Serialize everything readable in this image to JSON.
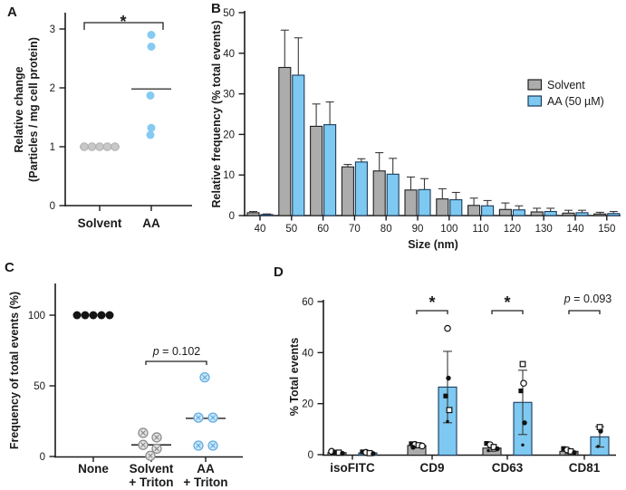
{
  "colors": {
    "axis": "#1a1a1a",
    "gray_fill": "#ACACAC",
    "gray_stroke": "#1f1f1f",
    "blue_fill": "#7EC9F1",
    "blue_stroke": "#1B3A5C",
    "errorbar": "#3a3a3a",
    "gray_dot": "#C8C8C8",
    "gray_dot_stroke": "#AFAFAF",
    "blue_dot": "#85CAF2",
    "black_dot": "#151515",
    "mean_gray": "#9F9F9F",
    "mean_dark": "#4a4a4a",
    "crossed_gray": "#8C8C8C",
    "crossed_gray_fill": "#E4E4E4",
    "crossed_blue": "#63ACDE",
    "crossed_blue_fill": "#CBE7FA",
    "marker_black": "#111111"
  },
  "chart_data": [
    {
      "id": "A",
      "type": "scatter",
      "panel_label": "A",
      "ylabel_lines": [
        "Relative change",
        "(Particles / mg cell protein)"
      ],
      "yticks": [
        0,
        1,
        2,
        3
      ],
      "ylim": [
        0,
        3.25
      ],
      "significance": "*",
      "groups": [
        {
          "label": "Solvent",
          "style": "gray-dot",
          "points": [
            1,
            1,
            1,
            1,
            1
          ],
          "jitter": [
            -17,
            -8.5,
            0,
            8.5,
            17
          ],
          "mean": 1.0
        },
        {
          "label": "AA",
          "style": "blue-dot",
          "points": [
            2.9,
            2.7,
            1.87,
            1.32,
            1.2
          ],
          "jitter": [
            0,
            0,
            -1,
            0,
            -1
          ],
          "mean": 1.98
        }
      ]
    },
    {
      "id": "B",
      "type": "bar",
      "panel_label": "B",
      "ylabel": "Relative frequency (% total events)",
      "xlabel": "Size (nm)",
      "yticks": [
        0,
        10,
        20,
        30,
        40,
        50
      ],
      "ylim": [
        0,
        50
      ],
      "categories": [
        "40",
        "50",
        "60",
        "70",
        "80",
        "90",
        "100",
        "110",
        "120",
        "130",
        "140",
        "150"
      ],
      "series": [
        {
          "name": "Solvent",
          "color_key": "gray",
          "values": [
            0.7,
            36.5,
            22.0,
            12.0,
            11.0,
            6.3,
            4.1,
            2.5,
            1.5,
            0.9,
            0.6,
            0.4
          ],
          "errors": [
            0.3,
            9.2,
            5.5,
            0.6,
            4.5,
            3.2,
            2.5,
            1.8,
            1.6,
            0.9,
            0.7,
            0.4
          ]
        },
        {
          "name": "AA (50 µM)",
          "color_key": "blue",
          "values": [
            0.25,
            34.6,
            22.4,
            13.2,
            10.2,
            6.4,
            3.9,
            2.4,
            1.4,
            1.0,
            0.7,
            0.5
          ],
          "errors": [
            0.15,
            9.2,
            5.6,
            0.8,
            3.9,
            2.7,
            1.8,
            1.3,
            1.0,
            0.8,
            0.6,
            0.5
          ]
        }
      ],
      "legend": [
        {
          "label": "Solvent",
          "color_key": "gray"
        },
        {
          "label": "AA (50 µM)",
          "color_key": "blue"
        }
      ]
    },
    {
      "id": "C",
      "type": "scatter",
      "panel_label": "C",
      "ylabel": "Frequency of total events (%)",
      "yticks": [
        0,
        50,
        100
      ],
      "ylim": [
        0,
        115
      ],
      "p_label": "p = 0.102",
      "groups": [
        {
          "label_lines": [
            "None"
          ],
          "style": "black-dot",
          "points": [
            100,
            100,
            100,
            100,
            100
          ],
          "jitter": [
            -18,
            -9,
            0,
            9,
            18
          ],
          "mean": null
        },
        {
          "label_lines": [
            "Solvent",
            "+ Triton"
          ],
          "style": "gray-crossed",
          "points": [
            16.7,
            13.5,
            8.2,
            5.5,
            0.5
          ],
          "jitter": [
            -9,
            6,
            -9,
            6,
            -1
          ],
          "mean": 8.2
        },
        {
          "label_lines": [
            "AA",
            "+ Triton"
          ],
          "style": "blue-crossed",
          "points": [
            56,
            27.5,
            27.5,
            7.7,
            7.7
          ],
          "jitter": [
            -1,
            -8,
            8,
            -8,
            8
          ],
          "mean": 27
        }
      ]
    },
    {
      "id": "D",
      "type": "bar",
      "panel_label": "D",
      "ylabel": "% Total events",
      "yticks": [
        0,
        20,
        40,
        60
      ],
      "ylim": [
        0,
        60
      ],
      "categories": [
        "isoFITC",
        "CD9",
        "CD63",
        "CD81"
      ],
      "annotations": [
        {
          "cat": 1,
          "text": "*"
        },
        {
          "cat": 2,
          "text": "*"
        },
        {
          "cat": 3,
          "text": "p = 0.093"
        }
      ],
      "series": [
        {
          "name": "Solvent",
          "color_key": "gray",
          "values": [
            0.8,
            3.6,
            2.6,
            1.3
          ],
          "errors": [
            0.4,
            0.7,
            1.3,
            0.9
          ],
          "scatter": [
            [
              [
                1.3,
                "oc"
              ],
              [
                1.0,
                "fs"
              ],
              [
                0.8,
                "os"
              ],
              [
                0.5,
                "fc"
              ],
              [
                0.3,
                "d"
              ]
            ],
            [
              [
                4.3,
                "fs"
              ],
              [
                4.0,
                "oc"
              ],
              [
                3.7,
                "os"
              ],
              [
                3.4,
                "oc"
              ],
              [
                2.9,
                "fc"
              ]
            ],
            [
              [
                4.4,
                "fs"
              ],
              [
                3.9,
                "oc"
              ],
              [
                3.0,
                "os"
              ],
              [
                2.3,
                "fc"
              ],
              [
                1.6,
                "d"
              ]
            ],
            [
              [
                2.4,
                "fs"
              ],
              [
                1.9,
                "oc"
              ],
              [
                1.3,
                "os"
              ],
              [
                0.8,
                "fc"
              ]
            ]
          ]
        },
        {
          "name": "AA (50 µM)",
          "color_key": "blue",
          "values": [
            0.7,
            26.5,
            20.5,
            7.0
          ],
          "errors": [
            0.4,
            14.0,
            12.6,
            4.0
          ],
          "scatter": [
            [
              [
                1.1,
                "fs"
              ],
              [
                0.9,
                "oc"
              ],
              [
                0.6,
                "os"
              ],
              [
                0.4,
                "fc"
              ]
            ],
            [
              [
                49.5,
                "oc"
              ],
              [
                30,
                "fc"
              ],
              [
                23,
                "fs"
              ],
              [
                17.5,
                "os"
              ],
              [
                13,
                "d"
              ]
            ],
            [
              [
                35.5,
                "os"
              ],
              [
                28,
                "oc"
              ],
              [
                25,
                "fs"
              ],
              [
                12.5,
                "fc"
              ],
              [
                3.8,
                "d"
              ]
            ],
            [
              [
                10.8,
                "os"
              ],
              [
                9.2,
                "fc"
              ],
              [
                3.2,
                "d"
              ]
            ]
          ]
        }
      ]
    }
  ]
}
